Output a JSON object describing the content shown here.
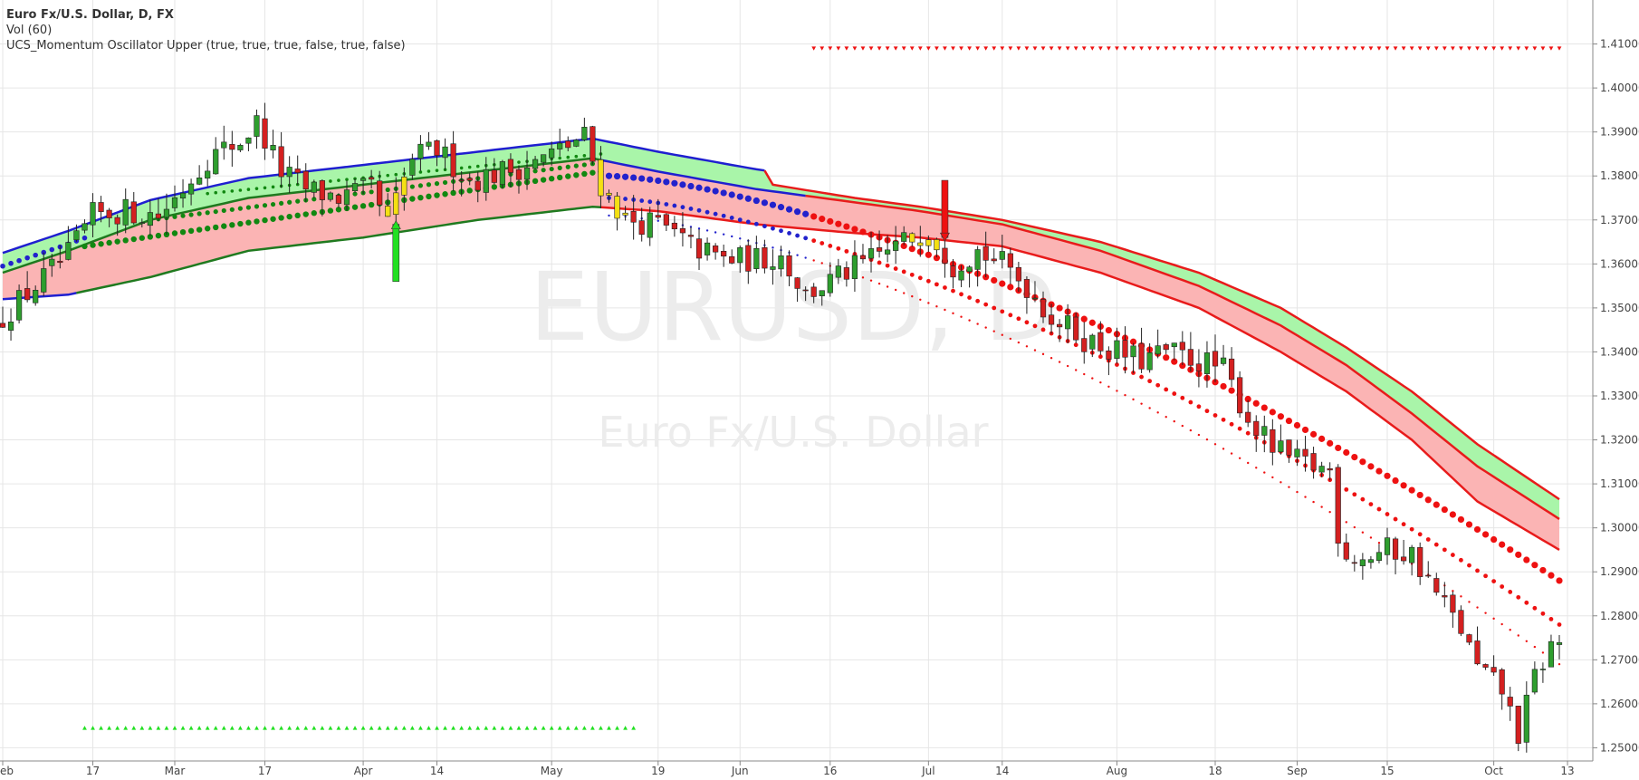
{
  "legend": {
    "title": "Euro Fx/U.S. Dollar, D, FX",
    "volume": "Vol (60)",
    "indicator": "UCS_Momentum Oscillator Upper (true, true, true, false, true, false)"
  },
  "watermark": {
    "symbol": "EURUSD, D",
    "description": "Euro Fx/U.S. Dollar"
  },
  "colors": {
    "up_candle": "#2e9e2e",
    "down_candle": "#d42020",
    "grid": "#e6e6e6",
    "band_upper_fill": "#a9f5a9",
    "band_lower_fill": "#fbb4b4",
    "ema_up": "#1f7a1f",
    "ema_down": "#e81b1b",
    "ema_neutral": "#1f1fd0",
    "dots_up": "#118811",
    "dots_down": "#ee1111",
    "dots_neutral": "#2222cc",
    "signal_up": "#22e022",
    "signal_down": "#ee1111"
  },
  "chart_data": {
    "type": "candlestick",
    "y_axis": {
      "min": 1.247,
      "max": 1.42,
      "ticks": [
        "1.41000",
        "1.40000",
        "1.39000",
        "1.38000",
        "1.37000",
        "1.36000",
        "1.35000",
        "1.34000",
        "1.33000",
        "1.32000",
        "1.31000",
        "1.30000",
        "1.29000",
        "1.28000",
        "1.27000",
        "1.26000",
        "1.25000"
      ]
    },
    "x_axis": {
      "ticks": [
        {
          "label": "eb",
          "idx": 0
        },
        {
          "label": "17",
          "idx": 11
        },
        {
          "label": "Mar",
          "idx": 21
        },
        {
          "label": "17",
          "idx": 32
        },
        {
          "label": "Apr",
          "idx": 44
        },
        {
          "label": "14",
          "idx": 53
        },
        {
          "label": "May",
          "idx": 67
        },
        {
          "label": "19",
          "idx": 80
        },
        {
          "label": "Jun",
          "idx": 90
        },
        {
          "label": "16",
          "idx": 101
        },
        {
          "label": "Jul",
          "idx": 113
        },
        {
          "label": "14",
          "idx": 122
        },
        {
          "label": "Aug",
          "idx": 136
        },
        {
          "label": "18",
          "idx": 148
        },
        {
          "label": "Sep",
          "idx": 158
        },
        {
          "label": "15",
          "idx": 169
        },
        {
          "label": "Oct",
          "idx": 182
        },
        {
          "label": "13",
          "idx": 191
        }
      ]
    },
    "close_anchors": [
      [
        0,
        1.348
      ],
      [
        4,
        1.355
      ],
      [
        8,
        1.362
      ],
      [
        11,
        1.371
      ],
      [
        15,
        1.372
      ],
      [
        19,
        1.371
      ],
      [
        21,
        1.375
      ],
      [
        25,
        1.384
      ],
      [
        29,
        1.388
      ],
      [
        31,
        1.392
      ],
      [
        34,
        1.381
      ],
      [
        37,
        1.377
      ],
      [
        41,
        1.375
      ],
      [
        45,
        1.377
      ],
      [
        47,
        1.369
      ],
      [
        50,
        1.384
      ],
      [
        53,
        1.386
      ],
      [
        57,
        1.379
      ],
      [
        61,
        1.381
      ],
      [
        65,
        1.383
      ],
      [
        68,
        1.386
      ],
      [
        71,
        1.389
      ],
      [
        73,
        1.378
      ],
      [
        76,
        1.37
      ],
      [
        80,
        1.369
      ],
      [
        84,
        1.364
      ],
      [
        88,
        1.361
      ],
      [
        92,
        1.361
      ],
      [
        95,
        1.362
      ],
      [
        98,
        1.353
      ],
      [
        102,
        1.357
      ],
      [
        106,
        1.361
      ],
      [
        110,
        1.365
      ],
      [
        113,
        1.368
      ],
      [
        116,
        1.36
      ],
      [
        119,
        1.363
      ],
      [
        122,
        1.36
      ],
      [
        125,
        1.355
      ],
      [
        128,
        1.348
      ],
      [
        132,
        1.343
      ],
      [
        136,
        1.34
      ],
      [
        139,
        1.338
      ],
      [
        142,
        1.34
      ],
      [
        146,
        1.338
      ],
      [
        149,
        1.336
      ],
      [
        152,
        1.325
      ],
      [
        155,
        1.318
      ],
      [
        158,
        1.315
      ],
      [
        162,
        1.313
      ],
      [
        163,
        1.295
      ],
      [
        166,
        1.293
      ],
      [
        169,
        1.295
      ],
      [
        172,
        1.294
      ],
      [
        175,
        1.285
      ],
      [
        178,
        1.277
      ],
      [
        180,
        1.268
      ],
      [
        183,
        1.263
      ],
      [
        185,
        1.253
      ],
      [
        187,
        1.266
      ],
      [
        189,
        1.273
      ],
      [
        190,
        1.274
      ]
    ],
    "ema_fast": [
      [
        0,
        1.358
      ],
      [
        8,
        1.363
      ],
      [
        18,
        1.37
      ],
      [
        30,
        1.375
      ],
      [
        44,
        1.378
      ],
      [
        58,
        1.381
      ],
      [
        72,
        1.384
      ],
      [
        80,
        1.381
      ],
      [
        92,
        1.377
      ],
      [
        104,
        1.374
      ],
      [
        112,
        1.372
      ],
      [
        122,
        1.369
      ],
      [
        134,
        1.363
      ],
      [
        146,
        1.355
      ],
      [
        156,
        1.346
      ],
      [
        164,
        1.337
      ],
      [
        172,
        1.326
      ],
      [
        180,
        1.314
      ],
      [
        190,
        1.302
      ]
    ],
    "ema_slow": [
      [
        0,
        1.352
      ],
      [
        8,
        1.353
      ],
      [
        18,
        1.357
      ],
      [
        30,
        1.363
      ],
      [
        44,
        1.366
      ],
      [
        58,
        1.37
      ],
      [
        72,
        1.373
      ],
      [
        80,
        1.372
      ],
      [
        92,
        1.369
      ],
      [
        104,
        1.367
      ],
      [
        112,
        1.366
      ],
      [
        122,
        1.364
      ],
      [
        134,
        1.358
      ],
      [
        146,
        1.35
      ],
      [
        156,
        1.34
      ],
      [
        164,
        1.331
      ],
      [
        172,
        1.32
      ],
      [
        180,
        1.306
      ],
      [
        190,
        1.295
      ]
    ],
    "ema_upper": [
      [
        94,
        1.378
      ],
      [
        104,
        1.375
      ],
      [
        112,
        1.373
      ],
      [
        122,
        1.37
      ],
      [
        134,
        1.365
      ],
      [
        146,
        1.358
      ],
      [
        156,
        1.35
      ],
      [
        164,
        1.341
      ],
      [
        172,
        1.331
      ],
      [
        180,
        1.319
      ],
      [
        190,
        1.3065
      ]
    ],
    "momentum_dots": [
      {
        "color": "dots_up",
        "size": 3.2,
        "from": 10,
        "to": 73,
        "start": 1.364,
        "end": 1.381
      },
      {
        "color": "dots_up",
        "size": 2.6,
        "from": 18,
        "to": 73,
        "start": 1.37,
        "end": 1.383
      },
      {
        "color": "dots_up",
        "size": 1.8,
        "from": 25,
        "to": 73,
        "start": 1.376,
        "end": 1.385
      },
      {
        "color": "dots_down",
        "size": 3.6,
        "from": 74,
        "to": 190,
        "start": 1.38,
        "end": 1.288
      },
      {
        "color": "dots_down",
        "size": 2.4,
        "from": 74,
        "to": 190,
        "start": 1.375,
        "end": 1.278
      },
      {
        "color": "dots_down",
        "size": 1.2,
        "from": 74,
        "to": 190,
        "start": 1.371,
        "end": 1.269
      }
    ],
    "signals": [
      {
        "type": "up",
        "idx": 48,
        "low": 1.356,
        "high": 1.369
      },
      {
        "type": "down",
        "idx": 115,
        "low": 1.366,
        "high": 1.379
      }
    ],
    "marker_rows": [
      {
        "type": "down",
        "from": 99,
        "to": 190,
        "y": 1.409
      },
      {
        "type": "up",
        "from": 10,
        "to": 77,
        "y": 1.2545
      }
    ]
  }
}
